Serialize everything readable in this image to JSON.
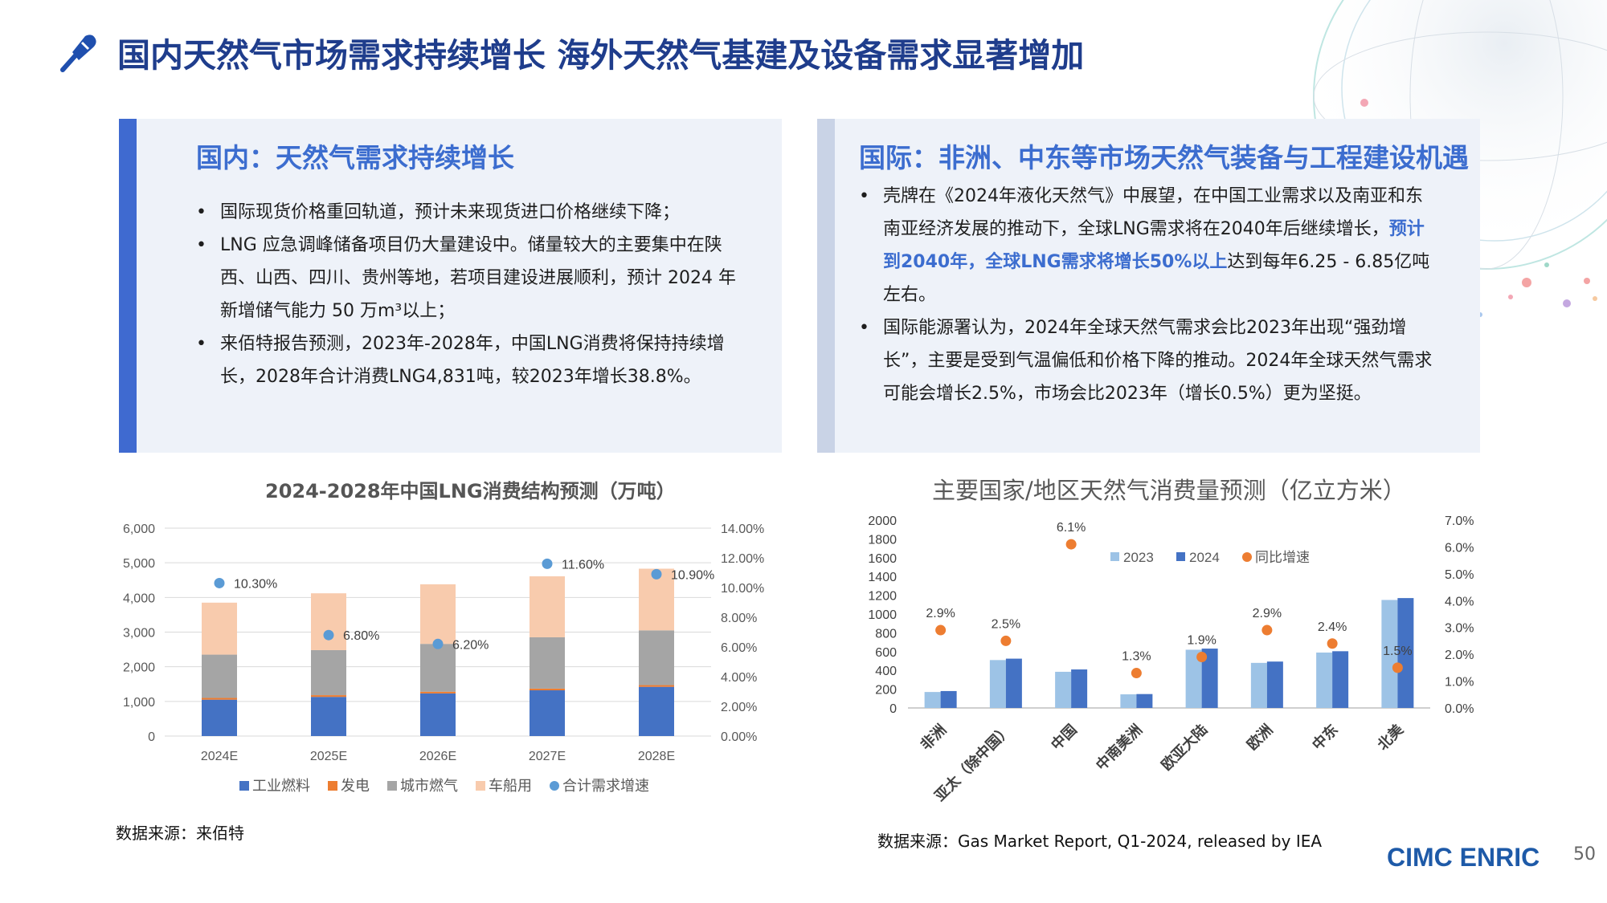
{
  "header": {
    "title": "国内天然气市场需求持续增长 海外天然气基建及设备需求显著增加",
    "icon": "pen-nib-icon",
    "accent": "#1f3d8c"
  },
  "left_panel": {
    "heading": "国内：天然气需求持续增长",
    "bullets": [
      "国际现货价格重回轨道，预计未来现货进口价格继续下降；",
      "LNG 应急调峰储备项目仍大量建设中。储量较大的主要集中在陕西、山西、四川、贵州等地，若项目建设进展顺利，预计 2024 年新增储气能力 50 万m³以上；",
      "来佰特报告预测，2023年-2028年，中国LNG消费将保持持续增长，2028年合计消费LNG4,831吨，较2023年增长38.8%。"
    ]
  },
  "right_panel": {
    "heading": "国际：非洲、中东等市场天然气装备与工程建设机遇",
    "bullet1_a": "壳牌在《2024年液化天然气》中展望，在中国工业需求以及南亚和东南亚经济发展的推动下，全球LNG需求将在2040年后继续增长，",
    "bullet1_hl": "预计到2040年，全球LNG需求将增长50%以上",
    "bullet1_b": "达到每年6.25 - 6.85亿吨左右。",
    "bullet2": "国际能源署认为，2024年全球天然气需求会比2023年出现“强劲增长”，主要是受到气温偏低和价格下降的推动。2024年全球天然气需求可能会增长2.5%，市场会比2023年（增长0.5%）更为坚挺。"
  },
  "chart_left_source": "数据来源：来佰特",
  "chart_right_source": "数据来源：Gas Market Report, Q1-2024, released by IEA",
  "footer": {
    "logo": "CIMC ENRIC",
    "page": "50"
  },
  "chart_data": [
    {
      "type": "bar",
      "stacked": true,
      "title": "2024-2028年中国LNG消费结构预测（万吨）",
      "categories": [
        "2024E",
        "2025E",
        "2026E",
        "2027E",
        "2028E"
      ],
      "ylim": [
        0,
        6000
      ],
      "yticks": [
        "0",
        "1,000",
        "2,000",
        "3,000",
        "4,000",
        "5,000",
        "6,000"
      ],
      "y2lim": [
        0,
        14
      ],
      "y2ticks": [
        "0.00%",
        "2.00%",
        "4.00%",
        "6.00%",
        "8.00%",
        "10.00%",
        "12.00%",
        "14.00%"
      ],
      "series": [
        {
          "name": "工业燃料",
          "color": "#4472c4",
          "values": [
            1050,
            1130,
            1230,
            1320,
            1420
          ]
        },
        {
          "name": "发电",
          "color": "#ed7d31",
          "values": [
            50,
            50,
            50,
            50,
            50
          ]
        },
        {
          "name": "城市燃气",
          "color": "#a5a5a5",
          "values": [
            1250,
            1300,
            1380,
            1480,
            1580
          ]
        },
        {
          "name": "车船用",
          "color": "#f8cbad",
          "values": [
            1500,
            1640,
            1720,
            1760,
            1780
          ]
        }
      ],
      "line_series": {
        "name": "合计需求增速",
        "color": "#5b9bd5",
        "values": [
          10.3,
          6.8,
          6.2,
          11.6,
          10.9
        ],
        "labels": [
          "10.30%",
          "6.80%",
          "6.20%",
          "11.60%",
          "10.90%"
        ]
      },
      "legend": "bottom"
    },
    {
      "type": "bar",
      "title": "主要国家/地区天然气消费量预测（亿立方米）",
      "categories": [
        "非洲",
        "亚太（除中国）",
        "中国",
        "中南美洲",
        "欧亚大陆",
        "欧洲",
        "中东",
        "北美"
      ],
      "ylim": [
        0,
        2000
      ],
      "yticks": [
        "0",
        "200",
        "400",
        "600",
        "800",
        "1000",
        "1200",
        "1400",
        "1600",
        "1800",
        "2000"
      ],
      "y2lim": [
        0,
        7
      ],
      "y2ticks": [
        "0.0%",
        "1.0%",
        "2.0%",
        "3.0%",
        "4.0%",
        "5.0%",
        "6.0%",
        "7.0%"
      ],
      "series": [
        {
          "name": "2023",
          "color": "#9dc3e6",
          "values": [
            170,
            510,
            385,
            145,
            620,
            480,
            590,
            1150
          ]
        },
        {
          "name": "2024",
          "color": "#4472c4",
          "values": [
            180,
            525,
            410,
            148,
            632,
            494,
            604,
            1170
          ]
        }
      ],
      "line_series": {
        "name": "同比增速",
        "color": "#ed7d31",
        "values": [
          2.9,
          2.5,
          6.1,
          1.3,
          1.9,
          2.9,
          2.4,
          1.5
        ],
        "labels": [
          "2.9%",
          "2.5%",
          "6.1%",
          "1.3%",
          "1.9%",
          "2.9%",
          "2.4%",
          "1.5%"
        ]
      },
      "legend": "top"
    }
  ]
}
